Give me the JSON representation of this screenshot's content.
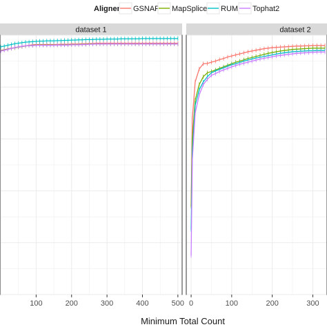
{
  "chart_data": {
    "type": "line",
    "xlabel": "Minimum Total Count",
    "ylabel": "",
    "legend": {
      "title": "Aligner",
      "position": "top",
      "entries": [
        "GSNAP",
        "MapSplice",
        "RUM",
        "Tophat2"
      ]
    },
    "colors": {
      "GSNAP": "#F8766D",
      "MapSplice": "#7CAE00",
      "RUM": "#00BFC4",
      "Tophat2": "#C77CFF"
    },
    "grid": true,
    "ylim": [
      0,
      1
    ],
    "panels": [
      {
        "title": "dataset 1",
        "xlim": [
          -2,
          512
        ],
        "xticks": [
          100,
          200,
          300,
          400,
          500
        ],
        "x": [
          0,
          10,
          20,
          30,
          40,
          50,
          60,
          70,
          80,
          90,
          100,
          110,
          120,
          130,
          140,
          150,
          160,
          170,
          180,
          190,
          200,
          210,
          220,
          230,
          240,
          250,
          260,
          270,
          280,
          290,
          300,
          310,
          320,
          330,
          340,
          350,
          360,
          370,
          380,
          390,
          400,
          410,
          420,
          430,
          440,
          450,
          460,
          470,
          480,
          490,
          500
        ],
        "series": [
          {
            "name": "GSNAP",
            "values": [
              0.941,
              0.944,
              0.947,
              0.95,
              0.952,
              0.955,
              0.957,
              0.959,
              0.961,
              0.963,
              0.964,
              0.964,
              0.964,
              0.964,
              0.964,
              0.964,
              0.964,
              0.965,
              0.965,
              0.965,
              0.966,
              0.966,
              0.966,
              0.967,
              0.967,
              0.968,
              0.968,
              0.969,
              0.969,
              0.969,
              0.969,
              0.969,
              0.969,
              0.969,
              0.969,
              0.969,
              0.969,
              0.969,
              0.969,
              0.969,
              0.969,
              0.969,
              0.969,
              0.969,
              0.969,
              0.969,
              0.969,
              0.969,
              0.969,
              0.969,
              0.969
            ]
          },
          {
            "name": "MapSplice",
            "values": [
              0.94,
              0.943,
              0.946,
              0.949,
              0.951,
              0.954,
              0.956,
              0.958,
              0.96,
              0.961,
              0.962,
              0.962,
              0.962,
              0.962,
              0.962,
              0.962,
              0.962,
              0.963,
              0.963,
              0.963,
              0.964,
              0.964,
              0.964,
              0.965,
              0.965,
              0.966,
              0.966,
              0.966,
              0.966,
              0.966,
              0.966,
              0.966,
              0.966,
              0.966,
              0.966,
              0.966,
              0.966,
              0.966,
              0.966,
              0.966,
              0.966,
              0.966,
              0.966,
              0.966,
              0.966,
              0.966,
              0.966,
              0.966,
              0.966,
              0.966,
              0.966
            ]
          },
          {
            "name": "RUM",
            "values": [
              0.955,
              0.958,
              0.961,
              0.964,
              0.967,
              0.969,
              0.971,
              0.973,
              0.974,
              0.975,
              0.976,
              0.977,
              0.977,
              0.978,
              0.978,
              0.978,
              0.979,
              0.979,
              0.98,
              0.98,
              0.981,
              0.981,
              0.982,
              0.982,
              0.983,
              0.983,
              0.983,
              0.984,
              0.984,
              0.984,
              0.985,
              0.985,
              0.985,
              0.985,
              0.986,
              0.986,
              0.986,
              0.986,
              0.986,
              0.986,
              0.987,
              0.987,
              0.987,
              0.987,
              0.987,
              0.987,
              0.987,
              0.987,
              0.987,
              0.987,
              0.987
            ]
          },
          {
            "name": "Tophat2",
            "values": [
              0.938,
              0.942,
              0.945,
              0.949,
              0.952,
              0.955,
              0.957,
              0.959,
              0.96,
              0.96,
              0.961,
              0.961,
              0.961,
              0.961,
              0.961,
              0.961,
              0.962,
              0.962,
              0.962,
              0.962,
              0.963,
              0.963,
              0.963,
              0.964,
              0.964,
              0.965,
              0.965,
              0.966,
              0.966,
              0.966,
              0.966,
              0.966,
              0.966,
              0.966,
              0.966,
              0.966,
              0.966,
              0.966,
              0.966,
              0.966,
              0.966,
              0.966,
              0.966,
              0.966,
              0.966,
              0.966,
              0.966,
              0.966,
              0.966,
              0.966,
              0.966
            ]
          }
        ]
      },
      {
        "title": "dataset 2",
        "xlim": [
          -12,
          335
        ],
        "xticks": [
          0,
          100,
          200,
          300
        ],
        "x": [
          0,
          3,
          10,
          20,
          30,
          40,
          50,
          60,
          70,
          80,
          90,
          100,
          110,
          120,
          130,
          140,
          150,
          160,
          170,
          180,
          190,
          200,
          210,
          220,
          230,
          240,
          250,
          260,
          270,
          280,
          290,
          300,
          310,
          320,
          330
        ],
        "series": [
          {
            "name": "GSNAP",
            "values": [
              0.34,
              0.68,
              0.82,
              0.87,
              0.89,
              0.891,
              0.896,
              0.9,
              0.906,
              0.91,
              0.916,
              0.92,
              0.924,
              0.928,
              0.932,
              0.936,
              0.939,
              0.942,
              0.945,
              0.948,
              0.95,
              0.952,
              0.953,
              0.954,
              0.955,
              0.956,
              0.957,
              0.958,
              0.958,
              0.959,
              0.959,
              0.96,
              0.96,
              0.96,
              0.96
            ]
          },
          {
            "name": "MapSplice",
            "values": [
              0.34,
              0.6,
              0.75,
              0.81,
              0.84,
              0.855,
              0.86,
              0.866,
              0.872,
              0.878,
              0.884,
              0.89,
              0.896,
              0.9,
              0.905,
              0.91,
              0.914,
              0.918,
              0.922,
              0.926,
              0.93,
              0.933,
              0.936,
              0.939,
              0.941,
              0.943,
              0.945,
              0.946,
              0.947,
              0.948,
              0.949,
              0.95,
              0.95,
              0.95,
              0.95
            ]
          },
          {
            "name": "RUM",
            "values": [
              0.25,
              0.55,
              0.73,
              0.79,
              0.82,
              0.84,
              0.855,
              0.862,
              0.868,
              0.874,
              0.88,
              0.886,
              0.89,
              0.895,
              0.9,
              0.904,
              0.908,
              0.912,
              0.915,
              0.918,
              0.921,
              0.924,
              0.927,
              0.93,
              0.932,
              0.934,
              0.936,
              0.937,
              0.938,
              0.939,
              0.94,
              0.94,
              0.941,
              0.941,
              0.941
            ]
          },
          {
            "name": "Tophat2",
            "values": [
              0.15,
              0.52,
              0.7,
              0.77,
              0.81,
              0.83,
              0.845,
              0.852,
              0.86,
              0.866,
              0.872,
              0.878,
              0.883,
              0.888,
              0.892,
              0.896,
              0.9,
              0.904,
              0.908,
              0.911,
              0.914,
              0.917,
              0.92,
              0.922,
              0.924,
              0.926,
              0.928,
              0.93,
              0.931,
              0.932,
              0.933,
              0.934,
              0.935,
              0.935,
              0.935
            ]
          }
        ]
      }
    ]
  }
}
